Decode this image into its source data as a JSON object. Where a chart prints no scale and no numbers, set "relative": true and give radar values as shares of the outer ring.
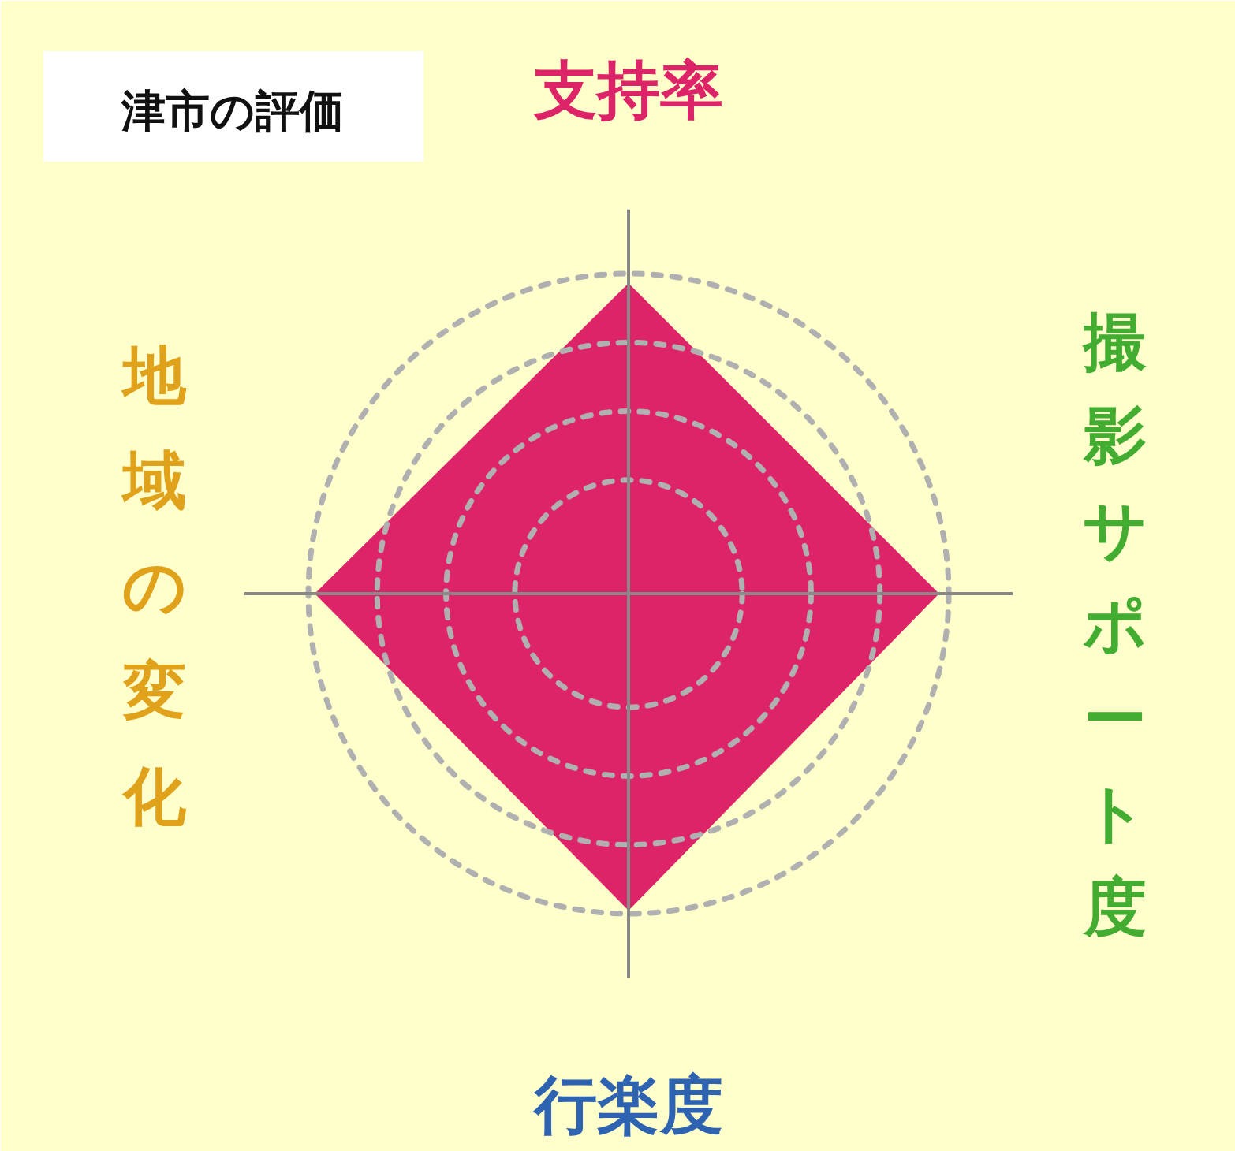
{
  "chart_data": {
    "type": "radar",
    "title": "津市の評価",
    "categories": [
      "支持率",
      "撮影サポート度",
      "行楽度",
      "地域の変化"
    ],
    "colors": [
      "#dd2468",
      "#43ad32",
      "#2e63b2",
      "#e0a11b"
    ],
    "relative": true,
    "grid": true,
    "series": [
      {
        "color": "#dd2468",
        "values": [
          0.97,
          0.97,
          0.99,
          0.98
        ]
      }
    ]
  }
}
